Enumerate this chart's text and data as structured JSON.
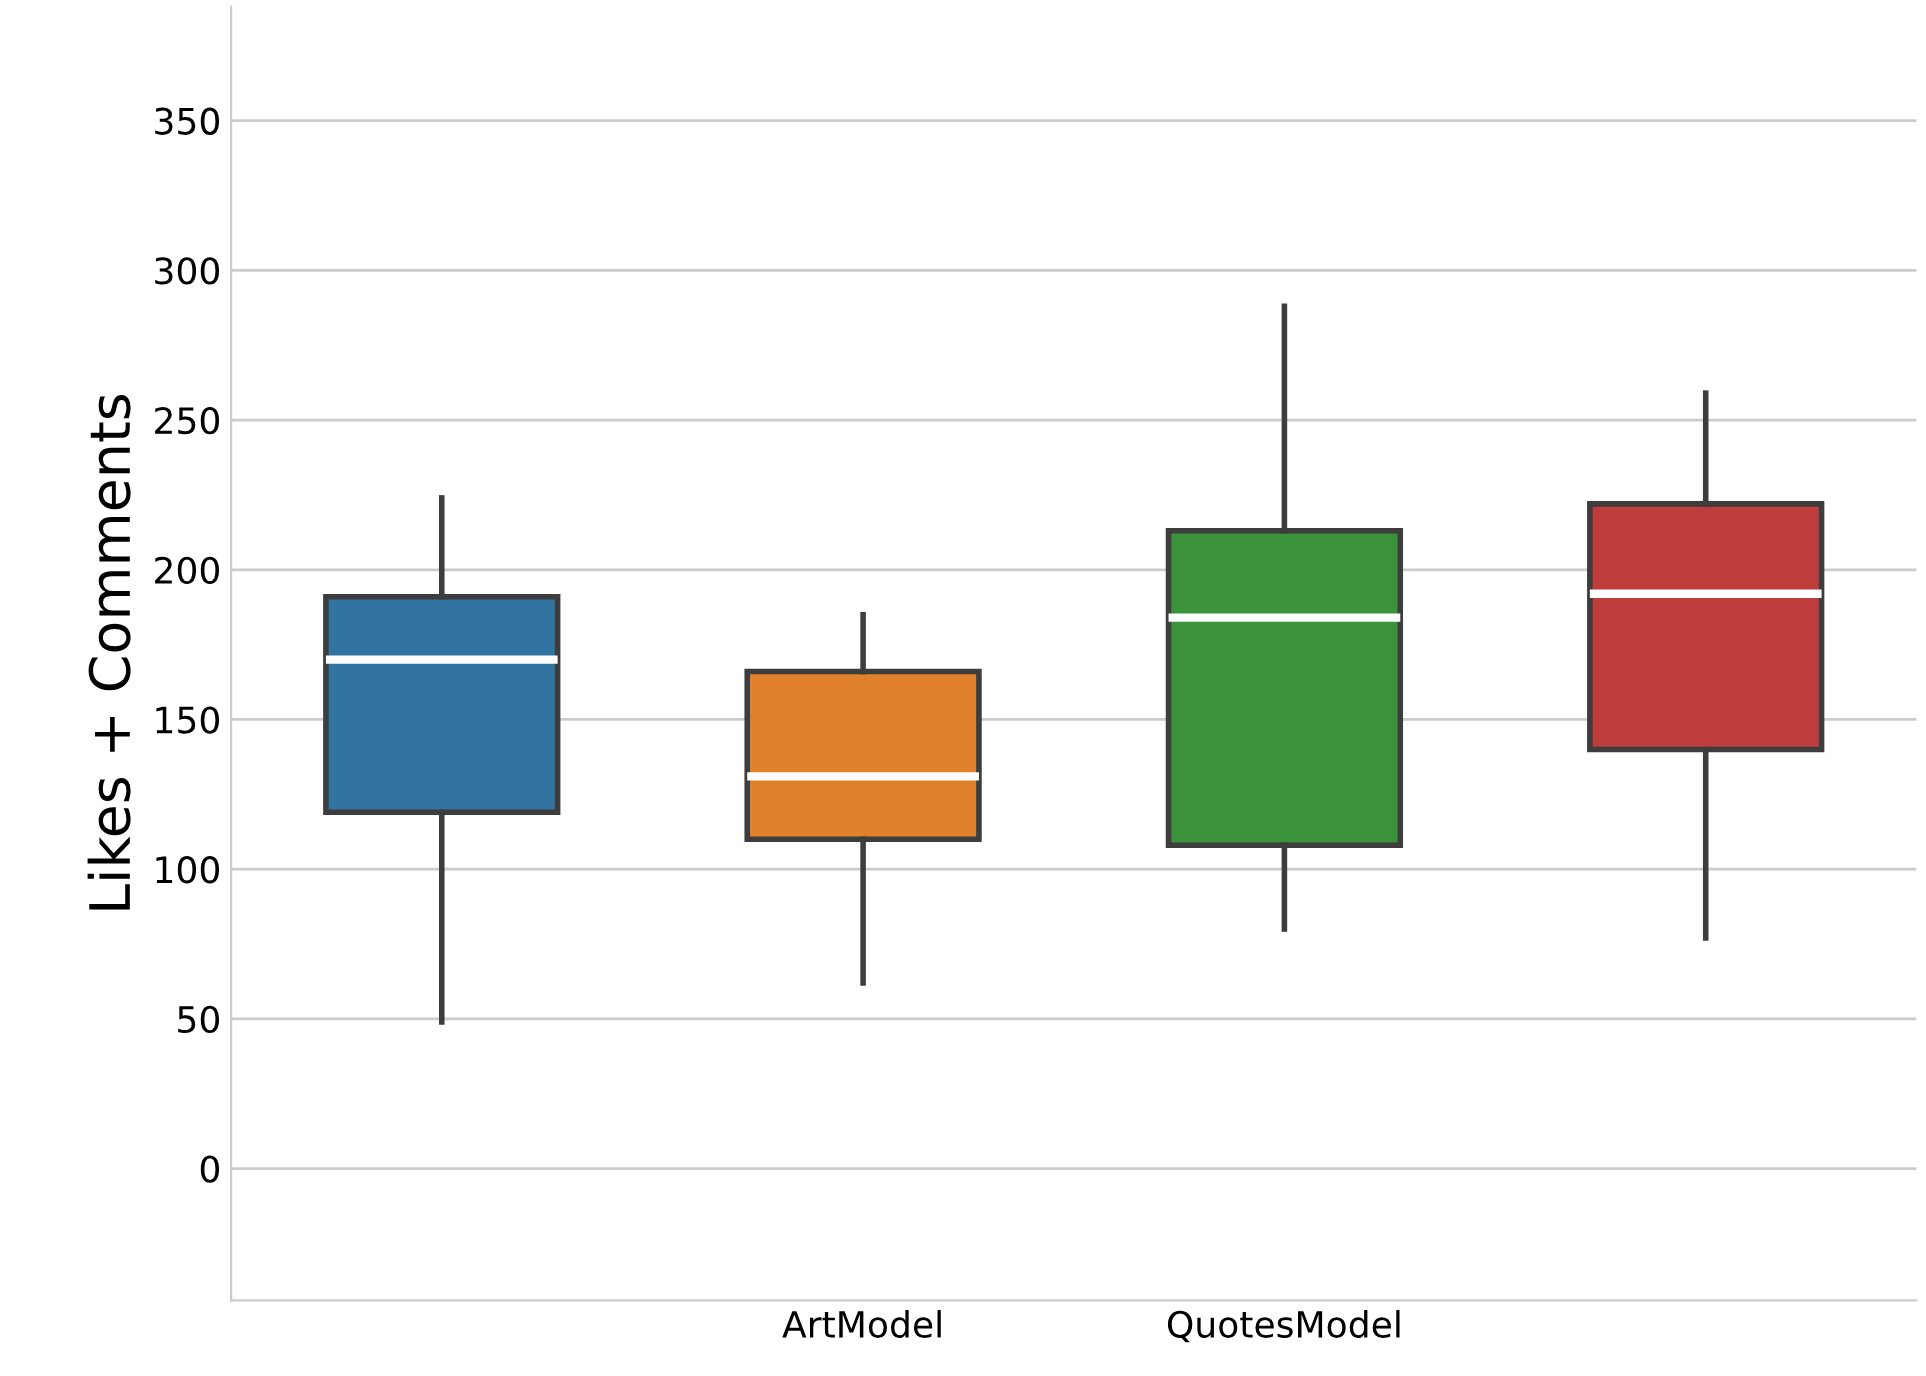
{
  "chart_data": {
    "type": "box",
    "ylabel": "Likes + Comments",
    "categories": [
      null,
      "ArtModel",
      "QuotesModel",
      null
    ],
    "colors": [
      "#3274a1",
      "#e1812c",
      "#3a923a",
      "#c03d3e"
    ],
    "boxes": [
      {
        "low": 49,
        "q1": 119,
        "median": 170,
        "q3": 191,
        "high": 224
      },
      {
        "low": 62,
        "q1": 110,
        "median": 131,
        "q3": 166,
        "high": 185
      },
      {
        "low": 80,
        "q1": 108,
        "median": 184,
        "q3": 213,
        "high": 288
      },
      {
        "low": 77,
        "q1": 140,
        "median": 192,
        "q3": 222,
        "high": 259
      }
    ],
    "ylim": [
      -44,
      388
    ],
    "yticks": [
      0,
      50,
      100,
      150,
      200,
      250,
      300,
      350
    ],
    "grid": "y"
  }
}
